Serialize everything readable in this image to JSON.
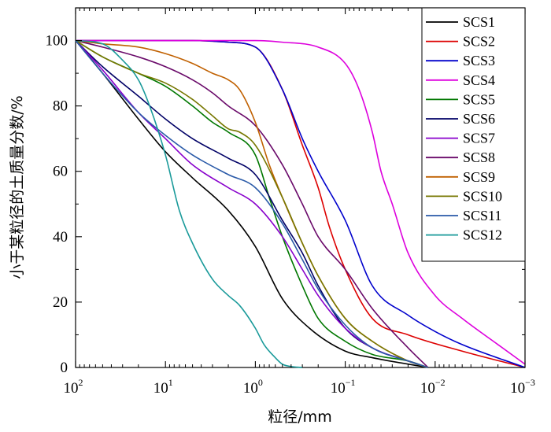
{
  "chart_data": {
    "type": "line",
    "xscale": "log",
    "xaxis_reversed": true,
    "xlim": [
      100,
      0.001
    ],
    "ylim": [
      0,
      110
    ],
    "xlabel": "粒径/mm",
    "ylabel": "小于某粒径的土质量分数/%",
    "xticks": [
      {
        "value": 100,
        "base": "10",
        "exp": "2"
      },
      {
        "value": 10,
        "base": "10",
        "exp": "1"
      },
      {
        "value": 1,
        "base": "10",
        "exp": "0"
      },
      {
        "value": 0.1,
        "base": "10",
        "exp": "−1"
      },
      {
        "value": 0.01,
        "base": "10",
        "exp": "−2"
      },
      {
        "value": 0.001,
        "base": "10",
        "exp": "−3"
      }
    ],
    "yticks": [
      {
        "value": 0,
        "label": "0"
      },
      {
        "value": 20,
        "label": "20"
      },
      {
        "value": 40,
        "label": "40"
      },
      {
        "value": 60,
        "label": "60"
      },
      {
        "value": 80,
        "label": "80"
      },
      {
        "value": 100,
        "label": "100"
      }
    ],
    "legend_position": "top-right",
    "series": [
      {
        "name": "SCS1",
        "color": "#000000",
        "x": [
          100,
          50,
          20,
          10,
          5,
          2,
          1,
          0.5,
          0.25,
          0.1,
          0.05,
          0.012
        ],
        "y": [
          100,
          90,
          76,
          66,
          58,
          48,
          37,
          21,
          12,
          5,
          3,
          0
        ]
      },
      {
        "name": "SCS2",
        "color": "#dd0000",
        "x": [
          100,
          20,
          10,
          5,
          2,
          1,
          0.5,
          0.3,
          0.2,
          0.15,
          0.1,
          0.05,
          0.02,
          0.005,
          0.001
        ],
        "y": [
          100,
          100,
          100,
          100,
          99.5,
          98,
          85,
          68,
          55,
          43,
          30,
          15,
          10,
          5,
          0
        ]
      },
      {
        "name": "SCS3",
        "color": "#0000cc",
        "x": [
          100,
          20,
          10,
          5,
          2,
          1,
          0.5,
          0.3,
          0.2,
          0.1,
          0.05,
          0.02,
          0.01,
          0.005,
          0.001
        ],
        "y": [
          100,
          100,
          100,
          100,
          99.5,
          98,
          85,
          70,
          60,
          45,
          25,
          16,
          11,
          7,
          0
        ]
      },
      {
        "name": "SCS4",
        "color": "#dd00dd",
        "x": [
          100,
          10,
          1,
          0.5,
          0.2,
          0.1,
          0.07,
          0.05,
          0.04,
          0.03,
          0.02,
          0.01,
          0.005,
          0.002,
          0.001
        ],
        "y": [
          100,
          100,
          100,
          99.5,
          98,
          93,
          85,
          72,
          60,
          50,
          35,
          22,
          15,
          7,
          1
        ]
      },
      {
        "name": "SCS5",
        "color": "#007700",
        "x": [
          100,
          50,
          20,
          10,
          5,
          3,
          2,
          1,
          0.7,
          0.5,
          0.3,
          0.2,
          0.1,
          0.05,
          0.02,
          0.012
        ],
        "y": [
          100,
          95,
          90,
          86,
          80,
          75,
          72,
          65,
          52,
          40,
          25,
          15,
          8,
          4,
          2,
          0
        ]
      },
      {
        "name": "SCS6",
        "color": "#000066",
        "x": [
          100,
          50,
          20,
          10,
          5,
          2,
          1,
          0.5,
          0.3,
          0.2,
          0.1,
          0.05,
          0.02,
          0.012
        ],
        "y": [
          100,
          92,
          83,
          76,
          70,
          64,
          59,
          45,
          35,
          25,
          12,
          6,
          2,
          0
        ]
      },
      {
        "name": "SCS7",
        "color": "#8800cc",
        "x": [
          100,
          50,
          20,
          10,
          5,
          2,
          1,
          0.5,
          0.3,
          0.2,
          0.1,
          0.05,
          0.02,
          0.012
        ],
        "y": [
          100,
          91,
          78,
          70,
          62,
          55,
          50,
          40,
          30,
          22,
          12,
          6,
          2,
          0
        ]
      },
      {
        "name": "SCS8",
        "color": "#6a0a6a",
        "x": [
          100,
          50,
          20,
          10,
          5,
          3,
          2,
          1,
          0.5,
          0.3,
          0.2,
          0.1,
          0.05,
          0.02,
          0.012
        ],
        "y": [
          100,
          98,
          95,
          92,
          88,
          84,
          80,
          74,
          62,
          50,
          40,
          30,
          18,
          6,
          0
        ]
      },
      {
        "name": "SCS9",
        "color": "#c06000",
        "x": [
          100,
          50,
          20,
          10,
          5,
          3,
          2,
          1.5,
          1,
          0.7,
          0.5,
          0.3,
          0.2,
          0.1,
          0.05,
          0.02,
          0.012
        ],
        "y": [
          100,
          99,
          98,
          96,
          93,
          90,
          88,
          85,
          75,
          62,
          52,
          38,
          28,
          15,
          8,
          2,
          0
        ]
      },
      {
        "name": "SCS10",
        "color": "#777700",
        "x": [
          100,
          50,
          20,
          10,
          5,
          3,
          2,
          1.5,
          1,
          0.5,
          0.3,
          0.2,
          0.1,
          0.05,
          0.02,
          0.012
        ],
        "y": [
          100,
          95,
          90,
          87,
          82,
          77,
          73,
          72,
          68,
          52,
          38,
          28,
          15,
          8,
          2,
          0
        ]
      },
      {
        "name": "SCS11",
        "color": "#2a5aa8",
        "x": [
          100,
          50,
          20,
          10,
          5,
          2,
          1,
          0.5,
          0.3,
          0.2,
          0.1,
          0.05,
          0.02,
          0.012
        ],
        "y": [
          100,
          90,
          78,
          71,
          65,
          59,
          55,
          44,
          33,
          24,
          13,
          6,
          2,
          0
        ]
      },
      {
        "name": "SCS12",
        "color": "#1a9a9a",
        "x": [
          100,
          50,
          30,
          20,
          15,
          10,
          7,
          5,
          3,
          2,
          1.5,
          1,
          0.8,
          0.6,
          0.5,
          0.4,
          0.3
        ],
        "y": [
          100,
          99,
          94,
          88,
          80,
          65,
          48,
          38,
          27,
          22,
          19,
          12,
          7,
          3,
          1,
          0.3,
          0
        ]
      }
    ]
  }
}
